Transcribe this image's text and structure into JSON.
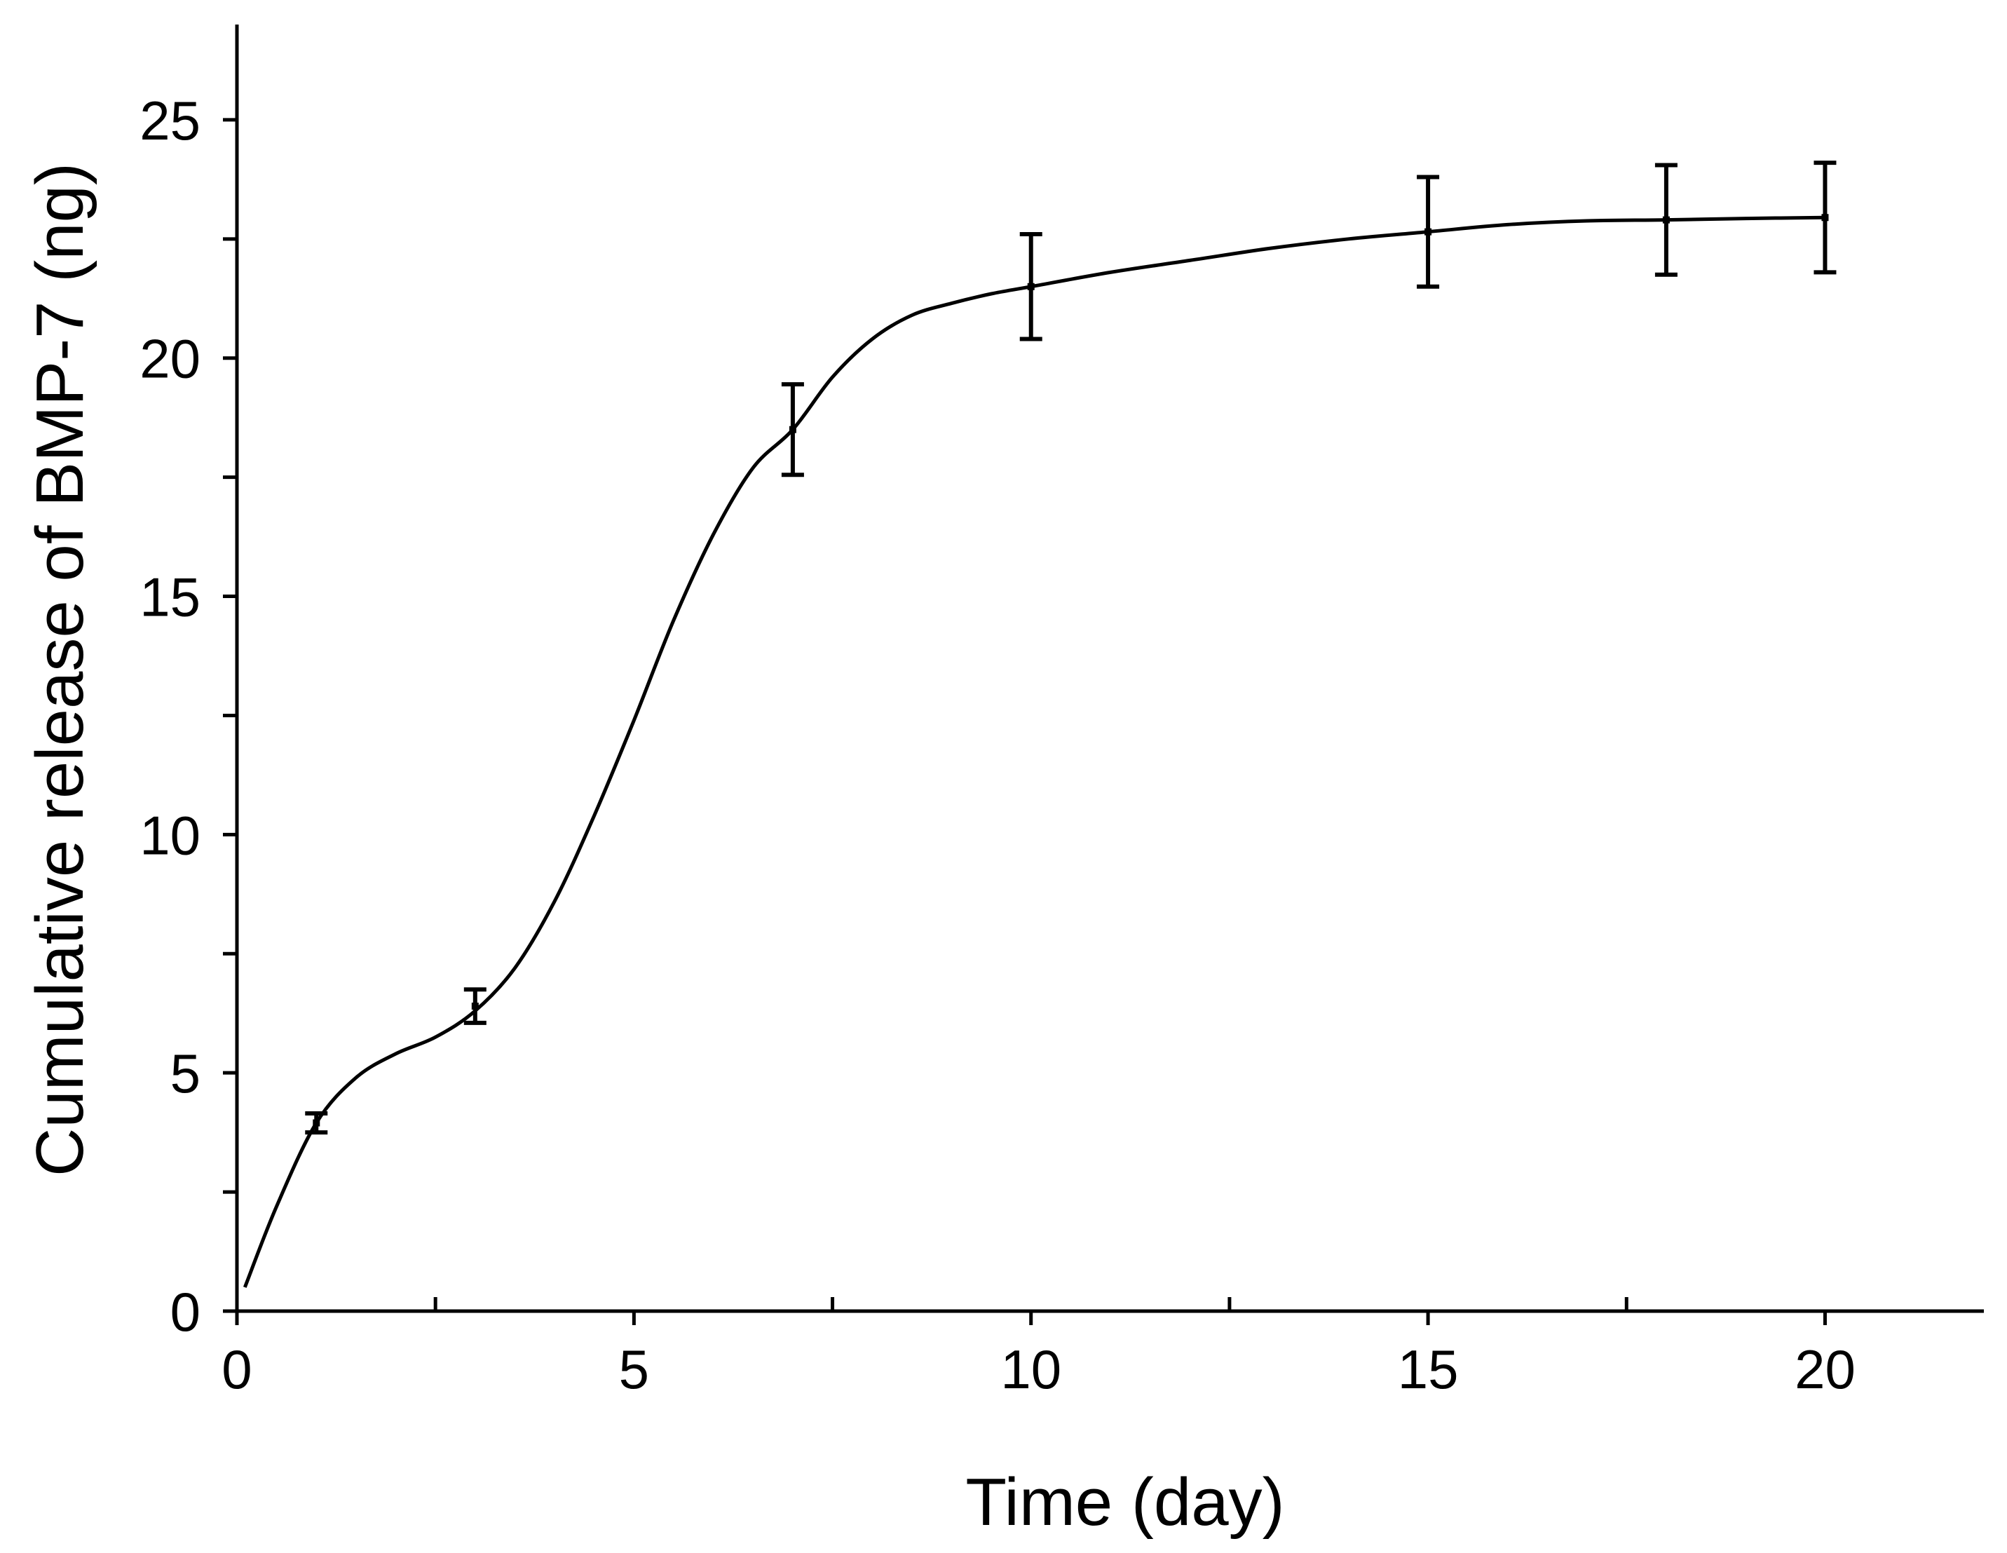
{
  "chart_data": {
    "type": "line",
    "title": "",
    "xlabel": "Time (day)",
    "ylabel": "Cumulative release of BMP-7 (ng)",
    "xlim": [
      0,
      22
    ],
    "ylim": [
      0,
      27
    ],
    "xticks": [
      0,
      5,
      10,
      15,
      20
    ],
    "xtick_labels": [
      "0",
      "5",
      "10",
      "15",
      "20"
    ],
    "x_minor_ticks": [
      2.5,
      7.5,
      12.5,
      17.5
    ],
    "yticks": [
      0,
      5,
      10,
      15,
      20,
      25
    ],
    "ytick_labels": [
      "0",
      "5",
      "10",
      "15",
      "20",
      "25"
    ],
    "y_minor_ticks": [
      2.5,
      7.5,
      12.5,
      17.5,
      22.5
    ],
    "grid": false,
    "legend": "none",
    "series": [
      {
        "name": "BMP-7",
        "points": [
          {
            "x": 1,
            "y": 3.95,
            "err": 0.2
          },
          {
            "x": 3,
            "y": 6.4,
            "err": 0.35
          },
          {
            "x": 7,
            "y": 18.5,
            "err": 0.95
          },
          {
            "x": 10,
            "y": 21.5,
            "err": 1.1
          },
          {
            "x": 15,
            "y": 22.65,
            "err": 1.15
          },
          {
            "x": 18,
            "y": 22.9,
            "err": 1.15
          },
          {
            "x": 20,
            "y": 22.95,
            "err": 1.15
          }
        ],
        "fit_curve": [
          [
            0.1,
            0.5
          ],
          [
            0.5,
            2.2
          ],
          [
            1,
            3.95
          ],
          [
            1.5,
            4.9
          ],
          [
            2,
            5.4
          ],
          [
            2.5,
            5.75
          ],
          [
            3,
            6.3
          ],
          [
            3.5,
            7.2
          ],
          [
            4,
            8.6
          ],
          [
            4.5,
            10.4
          ],
          [
            5,
            12.4
          ],
          [
            5.5,
            14.5
          ],
          [
            6,
            16.3
          ],
          [
            6.5,
            17.7
          ],
          [
            7,
            18.5
          ],
          [
            7.5,
            19.6
          ],
          [
            8,
            20.4
          ],
          [
            8.5,
            20.9
          ],
          [
            9,
            21.15
          ],
          [
            9.5,
            21.35
          ],
          [
            10,
            21.5
          ],
          [
            11,
            21.8
          ],
          [
            12,
            22.05
          ],
          [
            13,
            22.3
          ],
          [
            14,
            22.5
          ],
          [
            15,
            22.65
          ],
          [
            16,
            22.8
          ],
          [
            17,
            22.88
          ],
          [
            18,
            22.9
          ],
          [
            19,
            22.93
          ],
          [
            20,
            22.95
          ]
        ]
      }
    ]
  }
}
